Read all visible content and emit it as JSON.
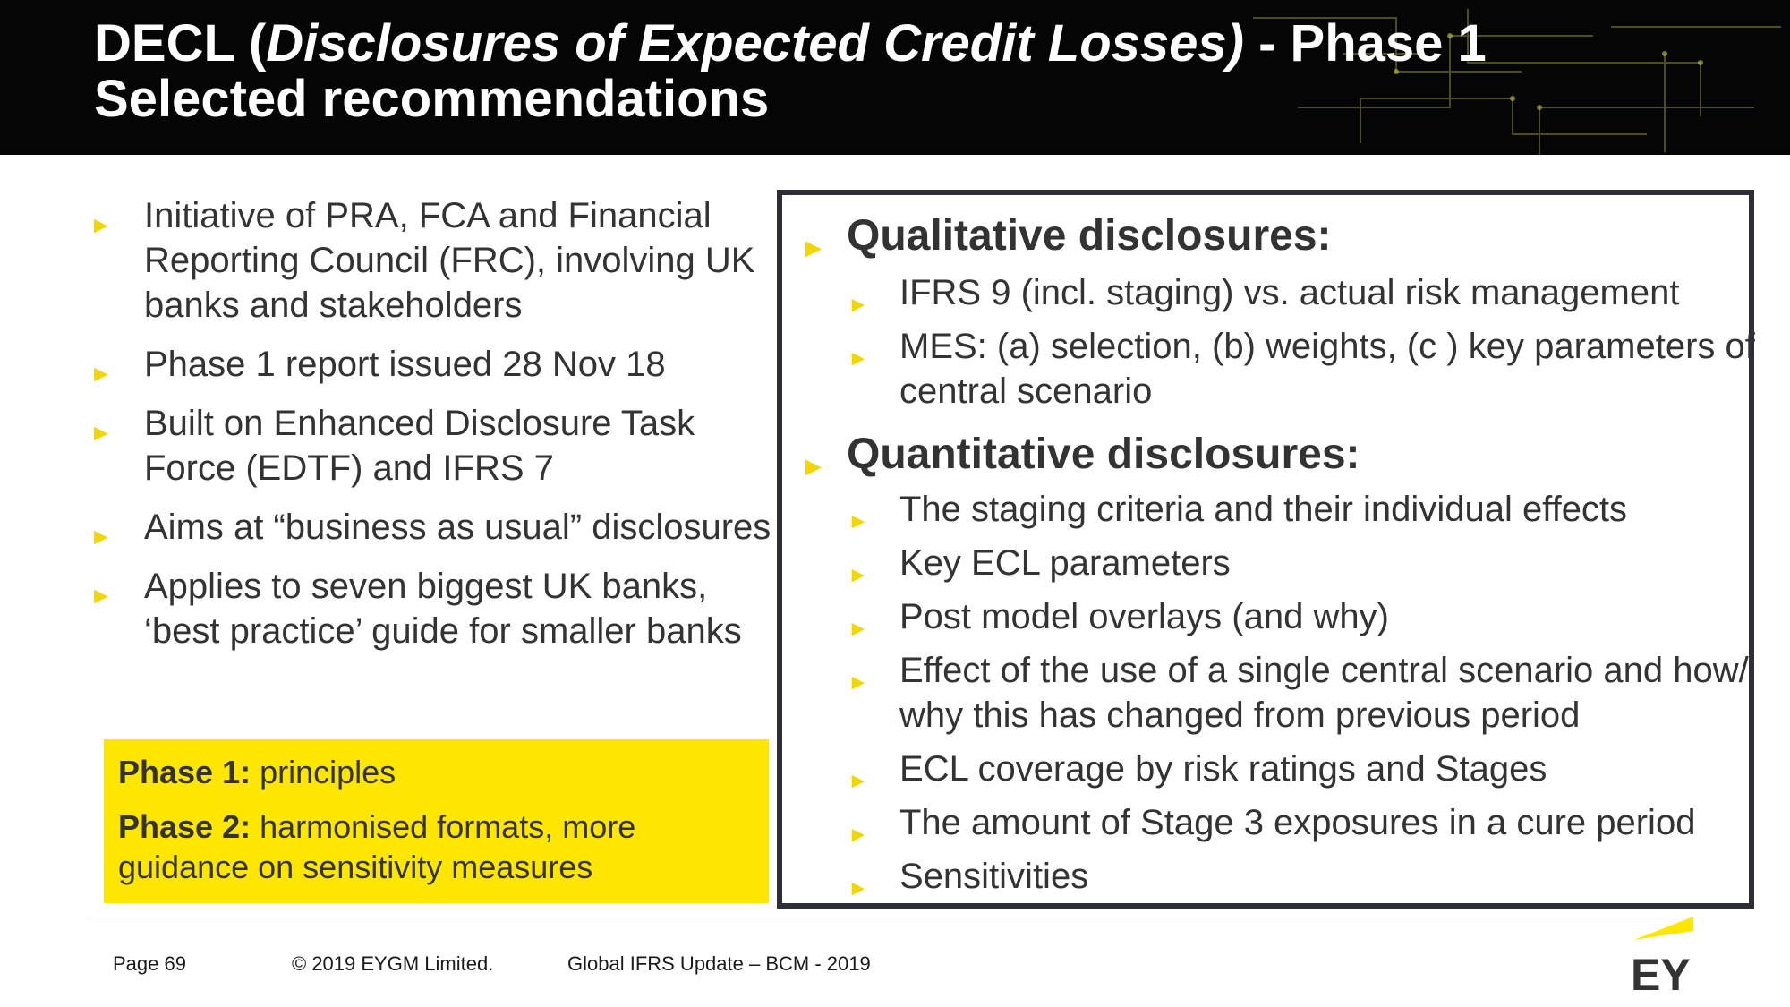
{
  "header": {
    "title_prefix": "DECL (",
    "title_italic": "Disclosures of Expected Credit Losses)",
    "title_suffix": " - Phase 1",
    "title_line2": "Selected recommendations"
  },
  "left_bullets": [
    "Initiative of PRA, FCA and Financial Reporting Council (FRC), involving UK banks and stakeholders",
    "Phase 1 report issued 28 Nov 18",
    "Built on Enhanced Disclosure Task Force (EDTF) and IFRS 7",
    "Aims at “business as usual” disclosures",
    "Applies to seven biggest UK banks, ‘best practice’ guide for smaller banks"
  ],
  "phase_box": {
    "phase1_label": "Phase 1:",
    "phase1_text": " principles",
    "phase2_label": "Phase 2:",
    "phase2_text": " harmonised formats, more guidance on sensitivity measures"
  },
  "qualitative": {
    "heading": "Qualitative disclosures:",
    "items": [
      "IFRS 9 (incl. staging) vs. actual risk management",
      "MES: (a) selection, (b) weights, (c ) key parameters of central scenario"
    ]
  },
  "quantitative": {
    "heading": "Quantitative disclosures:",
    "items": [
      "The staging criteria and their individual effects",
      "Key ECL parameters",
      "Post model overlays (and why)",
      "Effect of the use of a single central scenario and how/ why this has changed from previous period",
      "ECL coverage by risk ratings and Stages",
      "The amount of Stage 3 exposures in a cure period",
      "Sensitivities"
    ]
  },
  "footer": {
    "page": "Page 69",
    "copyright": "© 2019 EYGM Limited.",
    "event": "Global IFRS Update – BCM - 2019",
    "logo_text": "EY"
  },
  "colors": {
    "accent_yellow": "#ffe600",
    "bullet_yellow": "#f2d600",
    "header_bg": "#050505",
    "box_border": "#2e2e38"
  },
  "icons": {
    "bullet": "triangle-right-icon",
    "logo": "ey-logo"
  }
}
